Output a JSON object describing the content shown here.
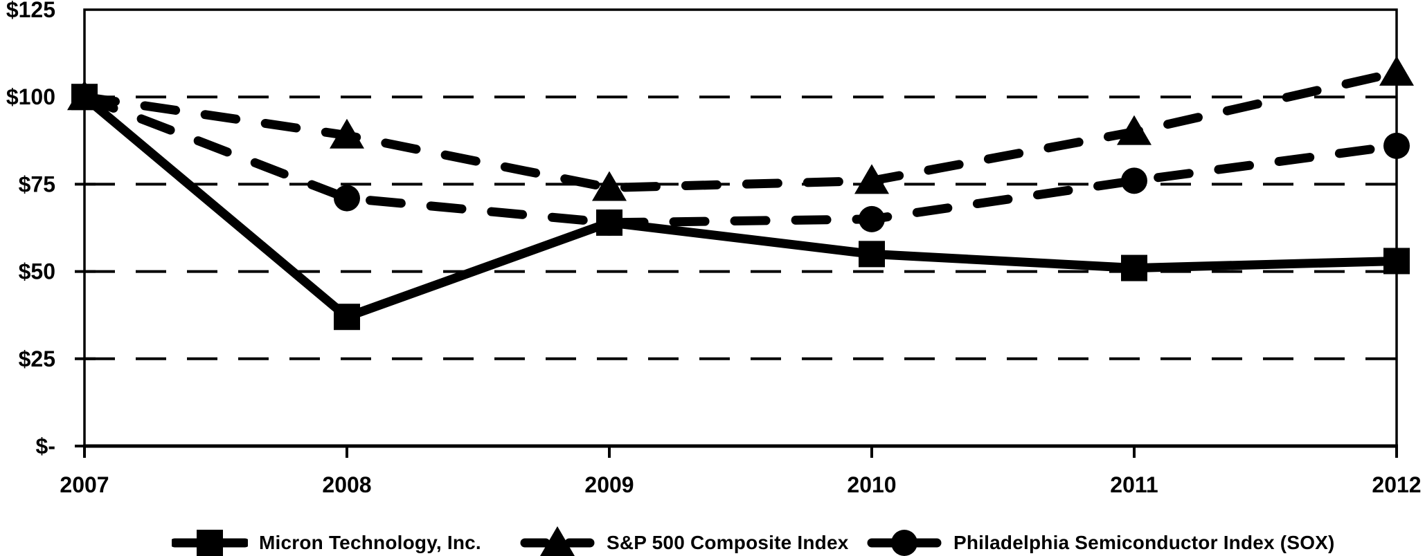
{
  "chart_data": {
    "type": "line",
    "title": "",
    "xlabel": "",
    "ylabel": "",
    "categories": [
      "2007",
      "2008",
      "2009",
      "2010",
      "2011",
      "2012"
    ],
    "series": [
      {
        "id": "micron",
        "name": "Micron Technology, Inc.",
        "marker": "square",
        "line_style": "solid",
        "values": [
          100,
          37,
          64,
          55,
          51,
          53
        ]
      },
      {
        "id": "sp500",
        "name": "S&P 500 Composite Index",
        "marker": "triangle",
        "line_style": "dashed",
        "values": [
          100,
          89,
          74,
          76,
          90,
          107
        ]
      },
      {
        "id": "sox",
        "name": "Philadelphia Semiconductor Index (SOX)",
        "marker": "circle",
        "line_style": "dashed",
        "values": [
          100,
          71,
          64,
          65,
          76,
          86
        ]
      }
    ],
    "y_ticks": [
      {
        "label": "$125",
        "value": 125
      },
      {
        "label": "$100",
        "value": 100
      },
      {
        "label": "$75",
        "value": 75
      },
      {
        "label": "$50",
        "value": 50
      },
      {
        "label": "$25",
        "value": 25
      },
      {
        "label": "$-",
        "value": 0
      }
    ],
    "ylim": [
      0,
      125
    ],
    "grid": "horizontal-dashed",
    "legend_position": "bottom",
    "colors": {
      "foreground": "#000000",
      "background": "#ffffff"
    }
  }
}
